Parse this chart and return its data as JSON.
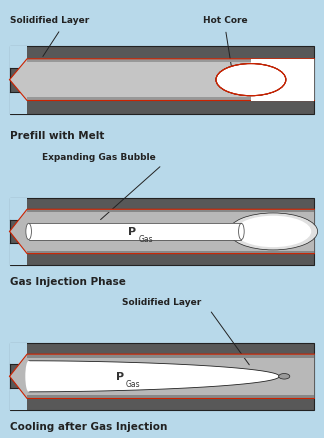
{
  "bg_color": "#b8d9ea",
  "mold_dark": "#606060",
  "mold_mid": "#909090",
  "mold_light": "#c0c0c0",
  "mold_vlight": "#d8d8d8",
  "red_line": "#cc2200",
  "dark_border": "#222222",
  "white": "#ffffff",
  "text_color": "#222222",
  "panel1_title": "Prefill with Melt",
  "panel2_title": "Gas Injection Phase",
  "panel3_title": "Cooling after Gas Injection",
  "label1a": "Solidified Layer",
  "label1b": "Hot Core",
  "label2a": "Expanding Gas Bubble",
  "label3a": "Solidified Layer",
  "pgas": "P",
  "pgas_sub": "Gas"
}
